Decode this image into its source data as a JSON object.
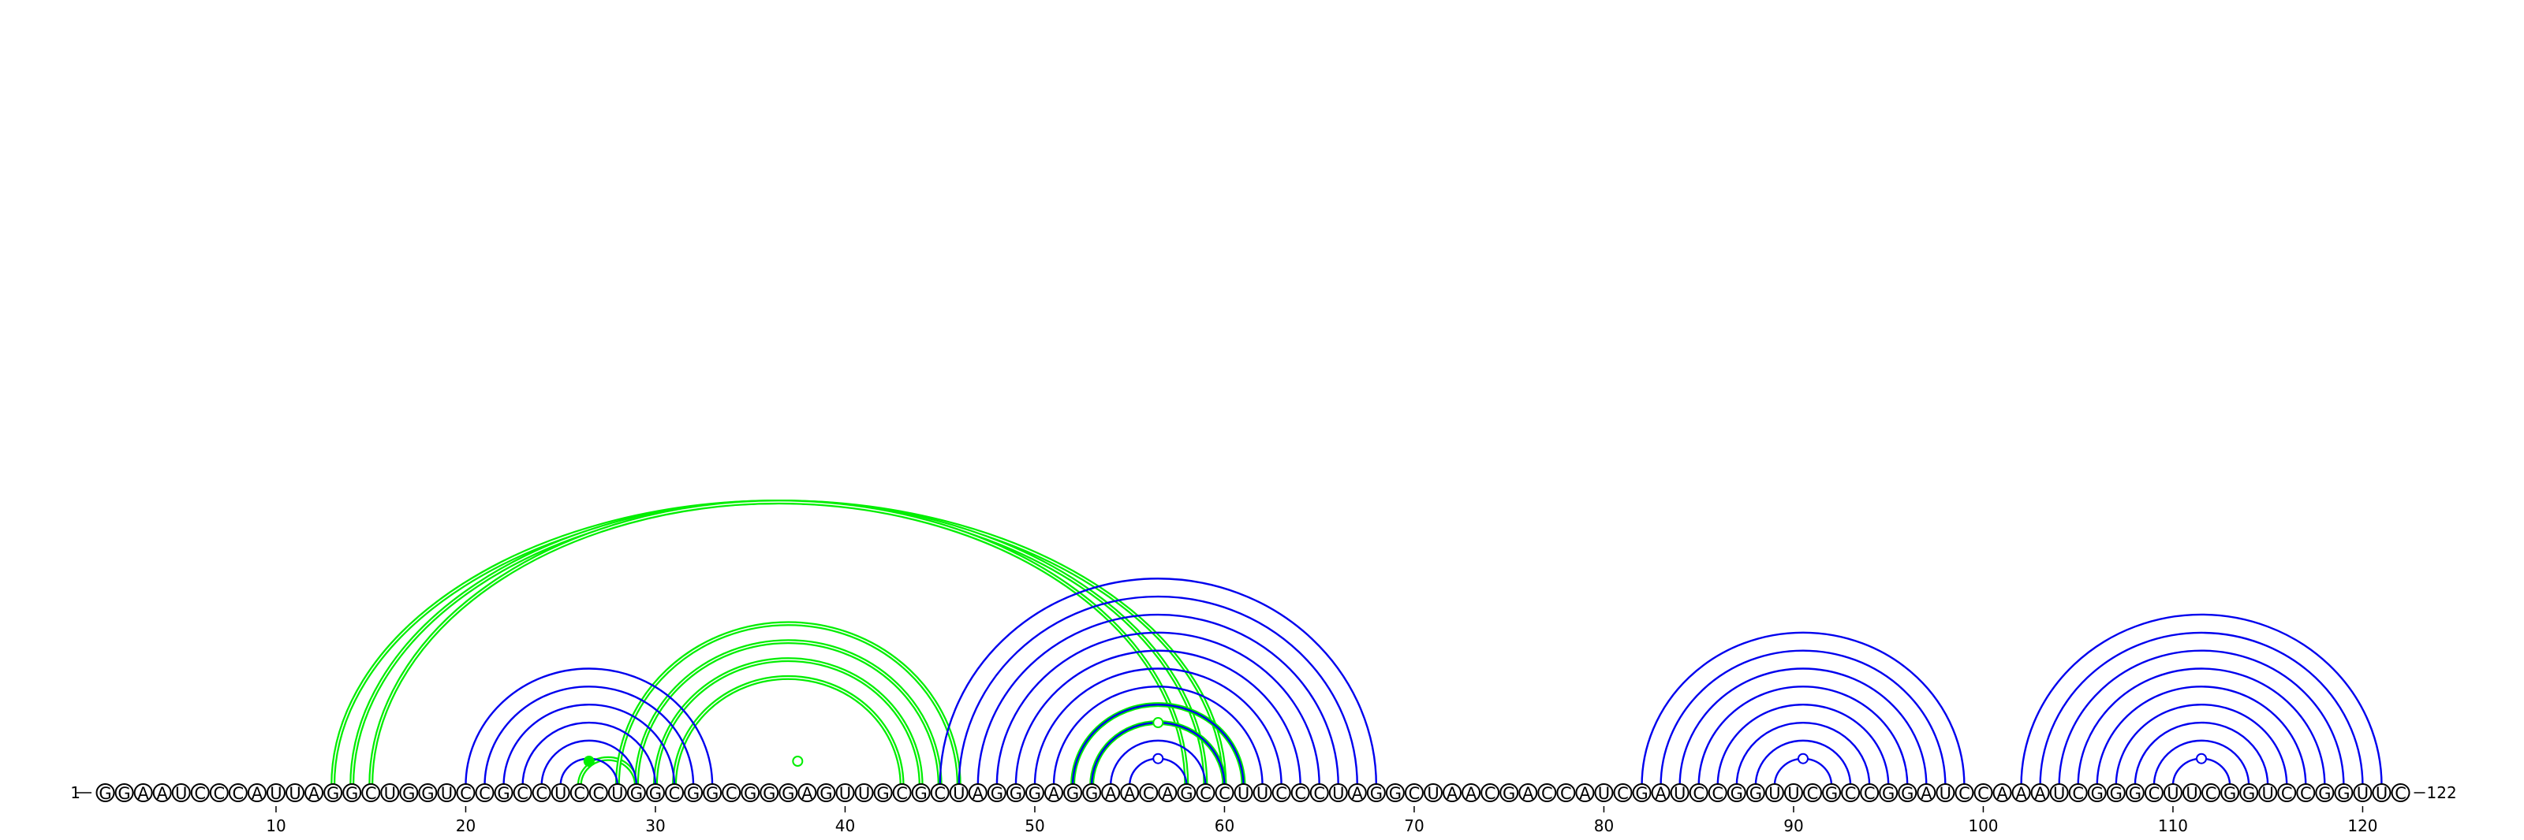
{
  "sequence": "GGAAUCCCAUUAGGCUGGUCCGCCUCCUGGCGGCGGGAGUUGCGCUAGGGAGGAACAGCCUUCCCUAGGCUAACGACCAUCGAUCCGGUUCGCCGGAUCCAAAUCGGGCUUCGGUCCGGUUC",
  "start_label": "1",
  "end_label": "122",
  "ticks": [
    10,
    20,
    30,
    40,
    50,
    60,
    70,
    80,
    90,
    100,
    110,
    120
  ],
  "colors": {
    "blue_structure": "#0000ee",
    "green_structure": "#00ee00"
  },
  "chart_data": {
    "type": "arc-diagram",
    "length": 122,
    "blue_pairs": [
      [
        20,
        33
      ],
      [
        21,
        32
      ],
      [
        22,
        31
      ],
      [
        23,
        30
      ],
      [
        24,
        29
      ],
      [
        25,
        28
      ],
      [
        45,
        68
      ],
      [
        46,
        67
      ],
      [
        47,
        66
      ],
      [
        48,
        65
      ],
      [
        49,
        64
      ],
      [
        50,
        63
      ],
      [
        51,
        62
      ],
      [
        52,
        61
      ],
      [
        53,
        60
      ],
      [
        54,
        59
      ],
      [
        55,
        58
      ],
      [
        82,
        99
      ],
      [
        83,
        98
      ],
      [
        84,
        97
      ],
      [
        85,
        96
      ],
      [
        86,
        95
      ],
      [
        87,
        94
      ],
      [
        88,
        93
      ],
      [
        89,
        92
      ],
      [
        102,
        121
      ],
      [
        103,
        120
      ],
      [
        104,
        119
      ],
      [
        105,
        118
      ],
      [
        106,
        117
      ],
      [
        107,
        116
      ],
      [
        108,
        115
      ],
      [
        109,
        114
      ],
      [
        110,
        113
      ]
    ],
    "green_pairs": [
      [
        13,
        60
      ],
      [
        14,
        59
      ],
      [
        15,
        58
      ],
      [
        26,
        29
      ],
      [
        28,
        46
      ],
      [
        29,
        45
      ],
      [
        30,
        44
      ],
      [
        31,
        43
      ],
      [
        52,
        61
      ],
      [
        53,
        60
      ]
    ],
    "blue_markers": [
      90.5,
      56.5,
      111.5
    ],
    "green_markers": [
      26.5,
      37.5,
      56.5
    ]
  }
}
